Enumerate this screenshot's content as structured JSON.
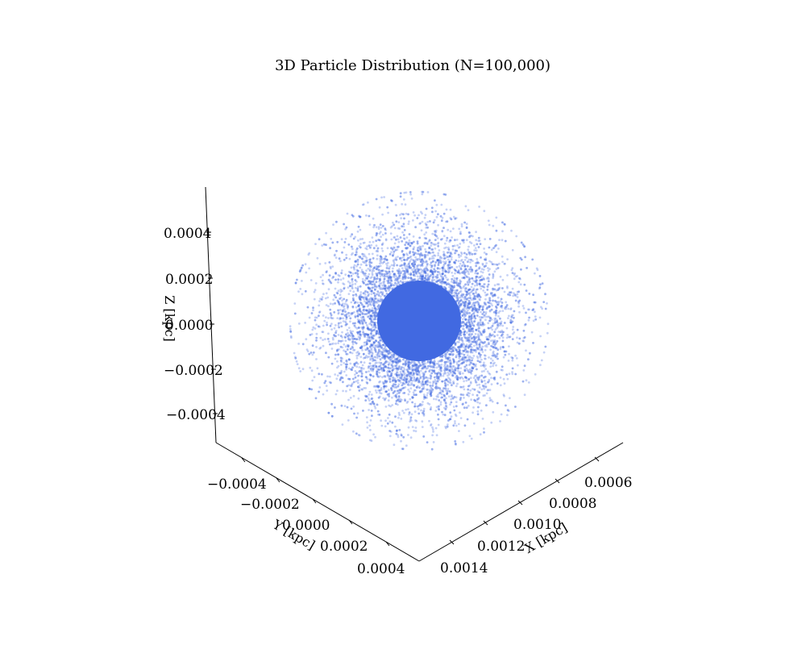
{
  "chart_data": {
    "type": "scatter",
    "projection": "3d",
    "title": "3D Particle Distribution (N=100,000)",
    "n_particles": 100000,
    "color": "#4169e1",
    "alpha": 0.3,
    "center": {
      "x": 0.00106,
      "y": 0.0,
      "z": 0.0
    },
    "approx_radius": 0.0005,
    "x_axis": {
      "label": "X [kpc]",
      "ticks": [
        "0.0006",
        "0.0008",
        "0.0010",
        "0.0012",
        "0.0014"
      ],
      "tick_values": [
        0.0006,
        0.0008,
        0.001,
        0.0012,
        0.0014
      ]
    },
    "y_axis": {
      "label": "Y [kpc]",
      "ticks": [
        "−0.0004",
        "−0.0002",
        "0.0000",
        "0.0002",
        "0.0004"
      ],
      "tick_values": [
        -0.0004,
        -0.0002,
        0.0,
        0.0002,
        0.0004
      ]
    },
    "z_axis": {
      "label": "Z [kpc]",
      "ticks": [
        "0.0004",
        "0.0002",
        "0.0000",
        "−0.0002",
        "−0.0004"
      ],
      "tick_values": [
        0.0004,
        0.0002,
        0.0,
        -0.0002,
        -0.0004
      ]
    },
    "grid": false
  }
}
